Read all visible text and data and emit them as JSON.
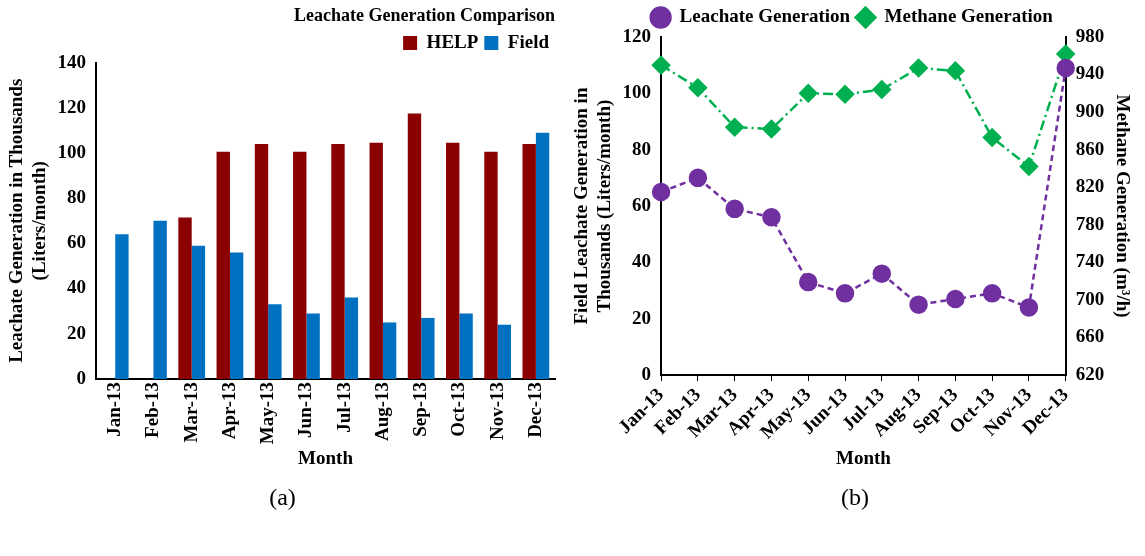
{
  "chart_data": [
    {
      "type": "bar",
      "title": "Leachate Generation Comparison",
      "xlabel": "Month",
      "ylabel": "Leachate Generation in Thousands (Liters/month)",
      "categories": [
        "Jan-13",
        "Feb-13",
        "Mar-13",
        "Apr-13",
        "May-13",
        "Jun-13",
        "Jul-13",
        "Aug-13",
        "Sep-13",
        "Oct-13",
        "Nov-13",
        "Dec-13"
      ],
      "series": [
        {
          "name": "HELP",
          "color": "#8b0000",
          "values": [
            null,
            null,
            71.5,
            100.5,
            104,
            100.5,
            104,
            104.5,
            117.5,
            104.5,
            100.5,
            104
          ]
        },
        {
          "name": "Field",
          "color": "#0070c0",
          "values": [
            64,
            70,
            59,
            56,
            33,
            29,
            36,
            25,
            27,
            29,
            24,
            109
          ]
        }
      ],
      "ylim": [
        0,
        140
      ],
      "yticks": [
        0,
        20,
        40,
        60,
        80,
        100,
        120,
        140
      ],
      "grid": false,
      "legend": "top right",
      "annotations": [
        "(a)"
      ]
    },
    {
      "type": "line",
      "xlabel": "Month",
      "ylabel": "Field Leachate Generation in Thousands (Liters/month)",
      "y2label": "Methane Generation (m³/h)",
      "categories": [
        "Jan-13",
        "Feb-13",
        "Mar-13",
        "Apr-13",
        "May-13",
        "Jun-13",
        "Jul-13",
        "Aug-13",
        "Sep-13",
        "Oct-13",
        "Nov-13",
        "Dec-13"
      ],
      "series": [
        {
          "name": "Leachate Generation",
          "color": "#7030a0",
          "marker": "circle",
          "line_style": "dashed",
          "values": [
            65,
            70,
            59,
            56,
            33,
            29,
            36,
            25,
            27,
            29,
            24,
            109
          ]
        },
        {
          "name": "Methane Generation",
          "color": "#00b050",
          "marker": "diamond",
          "line_style": "dashdot",
          "axis": "y2",
          "values": [
            950,
            926,
            884,
            882,
            920,
            919,
            924,
            947,
            944,
            873,
            842,
            962
          ]
        }
      ],
      "ylim": [
        0,
        120
      ],
      "yticks": [
        0,
        20,
        40,
        60,
        80,
        100,
        120
      ],
      "y2lim": [
        620,
        980
      ],
      "y2ticks": [
        620,
        660,
        700,
        740,
        780,
        820,
        860,
        900,
        940,
        980
      ],
      "grid": false,
      "legend": "top",
      "annotations": [
        "(b)"
      ]
    }
  ]
}
